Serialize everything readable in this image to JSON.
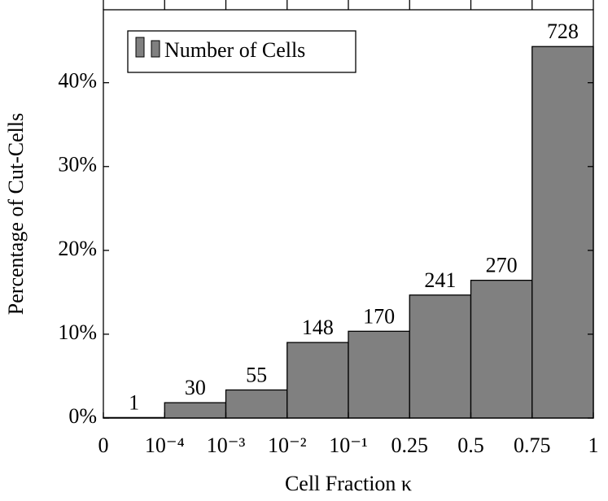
{
  "chart_data": {
    "type": "bar",
    "x_label": "Cell Fraction κ",
    "y_label": "Percentage of Cut-Cells",
    "legend_label": "Number of Cells",
    "bin_labels": [
      "0",
      "10⁻⁴",
      "10⁻³",
      "10⁻²",
      "10⁻¹",
      "0.25",
      "0.5",
      "0.75",
      "1"
    ],
    "values": [
      0.06,
      1.83,
      3.35,
      9.01,
      10.35,
      14.67,
      16.43,
      44.31
    ],
    "counts": [
      1,
      30,
      55,
      148,
      170,
      241,
      270,
      728
    ],
    "color": "#808080",
    "ylim": [
      0,
      48.7
    ],
    "yticks": [
      {
        "value": 0,
        "label": "0%"
      },
      {
        "value": 10,
        "label": "10%"
      },
      {
        "value": 20,
        "label": "20%"
      },
      {
        "value": 30,
        "label": "30%"
      },
      {
        "value": 40,
        "label": "40%"
      }
    ],
    "legend": "upper left"
  }
}
